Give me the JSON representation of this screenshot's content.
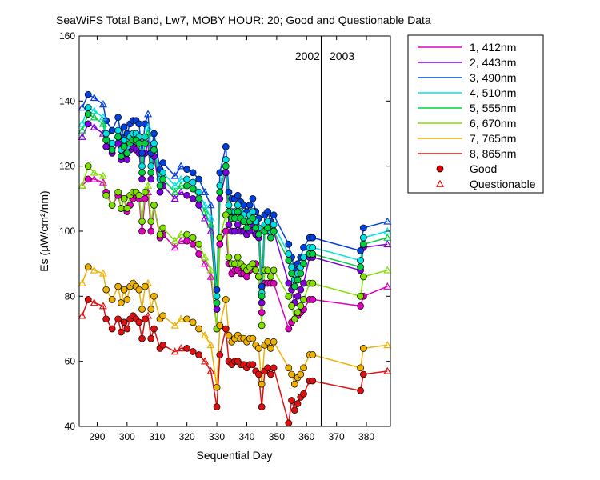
{
  "chart_data": {
    "type": "line",
    "title": "SeaWiFS Total Band,  Lw7, MOBY HOUR: 20;  Good and Questionable Data",
    "xlabel": "Sequential Day",
    "ylabel": "Es (µW/cm²/nm)",
    "xlim": [
      284,
      388
    ],
    "ylim": [
      40,
      160
    ],
    "x_ticks": [
      290,
      300,
      310,
      320,
      330,
      340,
      350,
      360,
      370,
      380
    ],
    "y_ticks": [
      40,
      60,
      80,
      100,
      120,
      140,
      160
    ],
    "grid": false,
    "legend_position": "right-outside",
    "annotations": {
      "year_left": "2002",
      "year_right": "2003",
      "year_divider_x": 365
    },
    "marker_legend": [
      {
        "label": "Good",
        "symbol": "filled-circle",
        "color": "#e00000"
      },
      {
        "label": "Questionable",
        "symbol": "open-triangle",
        "color": "#e00000"
      }
    ],
    "x": [
      285,
      287,
      289,
      292,
      293,
      295,
      297,
      298,
      299,
      300,
      301,
      302,
      303,
      304,
      305,
      306,
      307,
      308,
      309,
      311,
      312,
      316,
      318,
      320,
      322,
      324,
      326,
      328,
      330,
      331,
      333,
      334,
      335,
      336,
      337,
      338,
      339,
      340,
      341,
      342,
      343,
      344,
      345,
      346,
      347,
      348,
      349,
      354,
      355,
      356,
      357,
      358,
      359,
      361,
      362,
      378,
      379,
      387
    ],
    "marker_types": [
      "q",
      "g",
      "q",
      "q",
      "g",
      "g",
      "g",
      "g",
      "g",
      "g",
      "g",
      "g",
      "g",
      "g",
      "g",
      "g",
      "q",
      "g",
      "g",
      "g",
      "g",
      "q",
      "q",
      "g",
      "g",
      "g",
      "q",
      "q",
      "g",
      "g",
      "g",
      "g",
      "g",
      "g",
      "g",
      "g",
      "g",
      "g",
      "g",
      "g",
      "g",
      "g",
      "g",
      "g",
      "g",
      "g",
      "g",
      "g",
      "g",
      "g",
      "g",
      "g",
      "g",
      "g",
      "g",
      "g",
      "g",
      "q"
    ],
    "series": [
      {
        "name": "1, 412nm",
        "color": "#e000c0",
        "values": [
          114,
          116,
          116,
          115,
          112,
          108,
          111,
          107,
          110,
          106,
          108,
          110,
          111,
          110,
          100,
          110,
          112,
          100,
          108,
          98,
          99,
          95,
          97,
          97,
          96,
          93,
          90,
          86,
          70,
          96,
          100,
          90,
          87,
          88,
          88,
          87,
          87,
          86,
          88,
          90,
          90,
          86,
          75,
          84,
          84,
          84,
          84,
          70,
          72,
          73,
          74,
          75,
          76,
          79,
          79,
          77,
          80,
          83
        ]
      },
      {
        "name": "2, 443nm",
        "color": "#8000e0",
        "values": [
          129,
          133,
          132,
          130,
          126,
          124,
          127,
          122,
          124,
          122,
          125,
          126,
          125,
          124,
          116,
          124,
          127,
          116,
          123,
          112,
          114,
          110,
          112,
          111,
          110,
          108,
          104,
          100,
          76,
          110,
          118,
          102,
          100,
          100,
          102,
          100,
          100,
          99,
          100,
          102,
          99,
          98,
          78,
          100,
          100,
          98,
          100,
          84,
          82,
          78,
          80,
          82,
          84,
          92,
          92,
          88,
          95,
          96
        ]
      },
      {
        "name": "3, 490nm",
        "color": "#0040e0",
        "values": [
          138,
          142,
          141,
          139,
          134,
          131,
          135,
          129,
          132,
          130,
          133,
          134,
          134,
          133,
          124,
          133,
          136,
          124,
          130,
          119,
          121,
          117,
          120,
          119,
          118,
          116,
          112,
          108,
          82,
          118,
          126,
          112,
          110,
          110,
          111,
          109,
          108,
          106,
          108,
          110,
          106,
          104,
          83,
          105,
          106,
          103,
          105,
          96,
          92,
          88,
          90,
          92,
          95,
          98,
          98,
          94,
          101,
          103
        ]
      },
      {
        "name": "4, 510nm",
        "color": "#00e0e0",
        "values": [
          133,
          138,
          137,
          135,
          130,
          127,
          131,
          125,
          128,
          126,
          129,
          130,
          130,
          129,
          120,
          129,
          132,
          120,
          127,
          116,
          118,
          114,
          116,
          116,
          115,
          112,
          108,
          104,
          80,
          114,
          122,
          108,
          106,
          106,
          108,
          106,
          105,
          103,
          105,
          106,
          103,
          101,
          81,
          102,
          103,
          100,
          102,
          93,
          89,
          85,
          87,
          89,
          92,
          95,
          95,
          91,
          98,
          100
        ]
      },
      {
        "name": "5, 555nm",
        "color": "#00d040",
        "values": [
          131,
          136,
          135,
          133,
          128,
          125,
          129,
          123,
          126,
          124,
          127,
          128,
          128,
          127,
          118,
          127,
          130,
          118,
          125,
          114,
          116,
          112,
          114,
          114,
          113,
          110,
          106,
          102,
          78,
          112,
          120,
          106,
          104,
          104,
          106,
          104,
          103,
          101,
          103,
          104,
          101,
          99,
          80,
          100,
          101,
          98,
          100,
          91,
          87,
          83,
          85,
          87,
          90,
          93,
          93,
          89,
          96,
          98
        ]
      },
      {
        "name": "6, 670nm",
        "color": "#80e000",
        "values": [
          114,
          120,
          118,
          117,
          111,
          108,
          112,
          107,
          110,
          107,
          111,
          112,
          112,
          111,
          103,
          112,
          114,
          103,
          108,
          99,
          101,
          97,
          99,
          99,
          98,
          96,
          92,
          88,
          70,
          98,
          105,
          92,
          90,
          90,
          92,
          90,
          89,
          88,
          89,
          90,
          88,
          86,
          71,
          88,
          88,
          86,
          88,
          80,
          77,
          73,
          75,
          77,
          79,
          84,
          84,
          80,
          86,
          88
        ]
      },
      {
        "name": "7, 765nm",
        "color": "#f0b000",
        "values": [
          84,
          89,
          88,
          87,
          82,
          79,
          83,
          78,
          82,
          79,
          83,
          84,
          83,
          82,
          76,
          83,
          84,
          76,
          80,
          73,
          74,
          71,
          73,
          73,
          72,
          70,
          68,
          65,
          52,
          71,
          79,
          68,
          66,
          67,
          68,
          67,
          67,
          66,
          67,
          67,
          65,
          64,
          53,
          65,
          66,
          64,
          66,
          58,
          56,
          53,
          55,
          56,
          58,
          62,
          62,
          58,
          64,
          65
        ]
      },
      {
        "name": "8, 865nm",
        "color": "#e01010",
        "values": [
          74,
          79,
          78,
          77,
          73,
          70,
          73,
          69,
          72,
          70,
          73,
          74,
          73,
          72,
          67,
          73,
          74,
          67,
          70,
          64,
          65,
          63,
          64,
          64,
          63,
          62,
          60,
          57,
          46,
          62,
          70,
          60,
          59,
          60,
          60,
          59,
          59,
          58,
          59,
          59,
          57,
          56,
          46,
          57,
          58,
          56,
          58,
          41,
          48,
          45,
          47,
          49,
          50,
          54,
          54,
          51,
          56,
          57
        ]
      }
    ]
  }
}
